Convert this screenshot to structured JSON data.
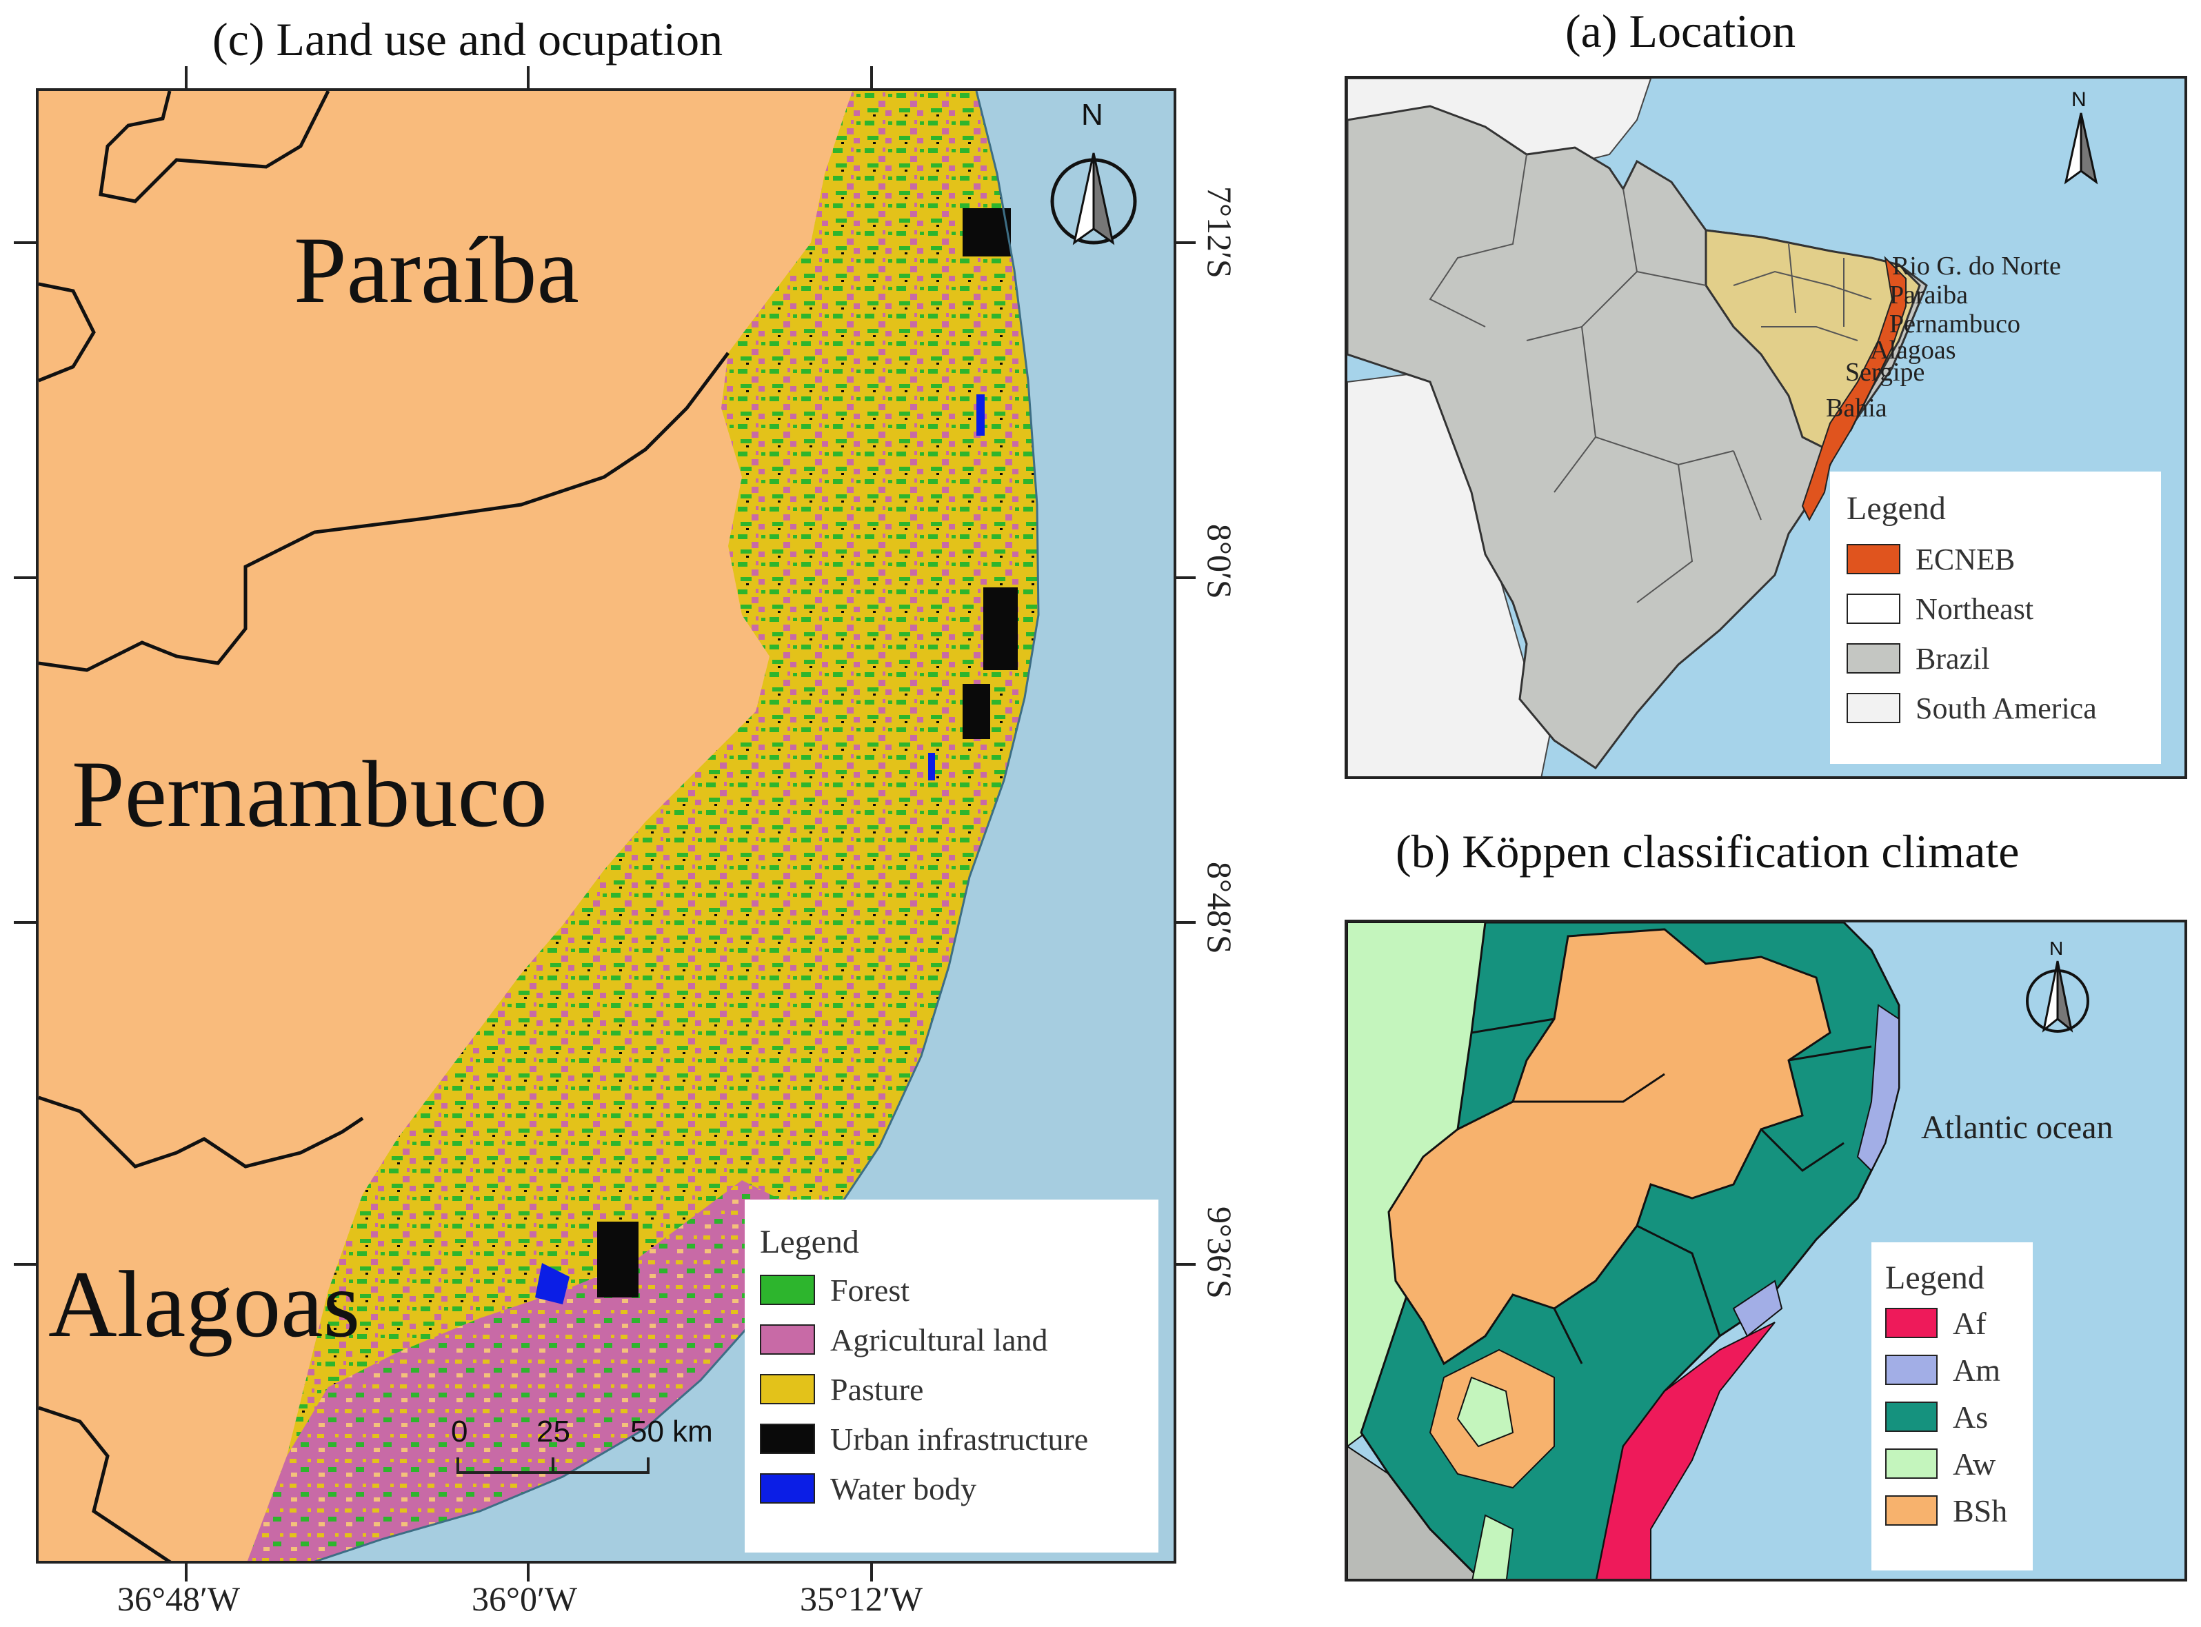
{
  "panel_c": {
    "title": "(c) Land use and ocupation",
    "states": [
      "Paraíba",
      "Pernambuco",
      "Alagoas"
    ],
    "lon_labels": [
      "36°48′W",
      "36°0′W",
      "35°12′W"
    ],
    "lat_labels": [
      "7°12′S",
      "8°0′S",
      "8°48′S",
      "9°36′S"
    ],
    "scale": {
      "labels": [
        "0",
        "25",
        "50 km"
      ]
    },
    "north": "N",
    "legend": {
      "title": "Legend",
      "items": [
        {
          "label": "Forest",
          "color": "#2db52d"
        },
        {
          "label": "Agricultural land",
          "color": "#c86aa6"
        },
        {
          "label": "Pasture",
          "color": "#e3c21a"
        },
        {
          "label": "Urban infrastructure",
          "color": "#0a0a0a"
        },
        {
          "label": "Water body",
          "color": "#0b1ee6"
        }
      ]
    },
    "colors": {
      "land": "#f9bb7c",
      "ocean": "#a6cde0"
    }
  },
  "panel_a": {
    "title": "(a) Location",
    "north": "N",
    "places": [
      "Rio G. do Norte",
      "Paraiba",
      "Pernambuco",
      "Alagoas",
      "Sergipe",
      "Bahia"
    ],
    "legend": {
      "title": "Legend",
      "items": [
        {
          "label": "ECNEB",
          "color": "#e0541e"
        },
        {
          "label": "Northeast",
          "color": "#ffffff"
        },
        {
          "label": "Brazil",
          "color": "#c4c6c2"
        },
        {
          "label": "South America",
          "color": "#f2f2f2"
        }
      ]
    },
    "colors": {
      "northeast_fill": "#e2cf8a",
      "ocean": "#a6d3ea"
    }
  },
  "panel_b": {
    "title": "(b) Köppen classification climate",
    "north": "N",
    "ocean_label": "Atlantic ocean",
    "legend": {
      "title": "Legend",
      "items": [
        {
          "label": "Af",
          "color": "#ee1a5a"
        },
        {
          "label": "Am",
          "color": "#a2aee6"
        },
        {
          "label": "As",
          "color": "#15927e"
        },
        {
          "label": "Aw",
          "color": "#c4f5bd"
        },
        {
          "label": "BSh",
          "color": "#f7b26d"
        }
      ]
    }
  }
}
